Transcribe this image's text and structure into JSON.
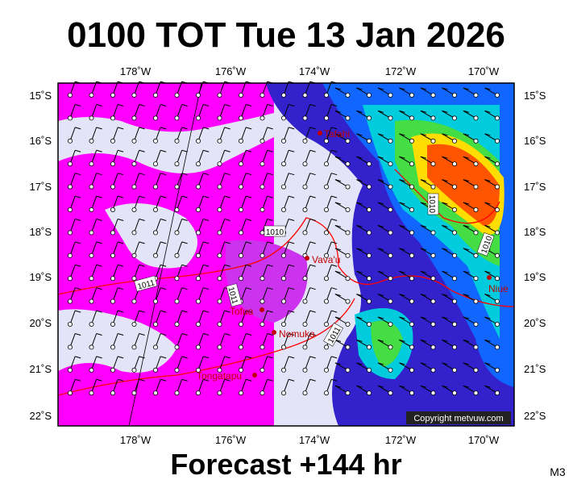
{
  "header": {
    "title": "0100 TOT Tue 13 Jan 2026"
  },
  "map": {
    "longitudes": [
      "178˚W",
      "176˚W",
      "174˚W",
      "172˚W",
      "170˚W"
    ],
    "latitudes": [
      "15˚S",
      "16˚S",
      "17˚S",
      "18˚S",
      "19˚S",
      "20˚S",
      "21˚S",
      "22˚S"
    ],
    "places": [
      "Tafahi",
      "Vava'u",
      "Niue",
      "Tofua",
      "Nomuka",
      "Tongatapu"
    ],
    "isobars": [
      "1010",
      "1010",
      "1010",
      "1011",
      "1011",
      "1011"
    ],
    "credit": "Copyright metvuw.com"
  },
  "footer": {
    "forecast": "Forecast +144 hr",
    "model": "M3"
  }
}
